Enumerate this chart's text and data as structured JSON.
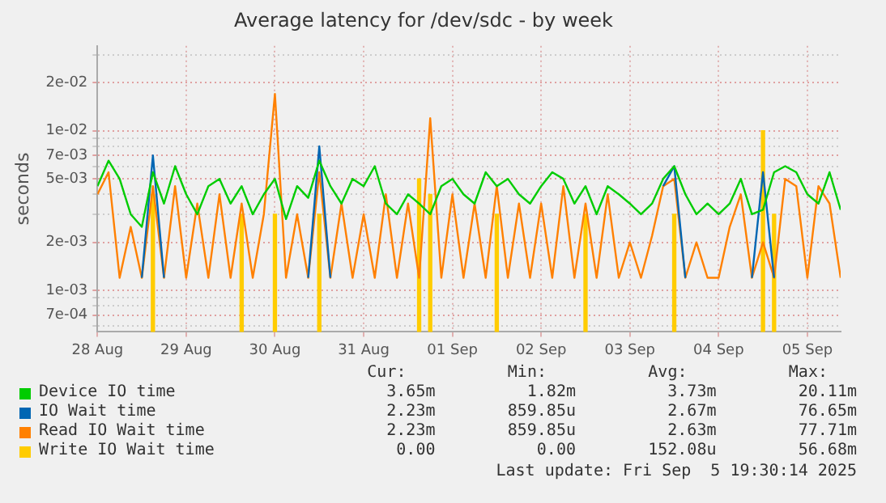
{
  "chart_data": {
    "type": "line",
    "title": "Average latency for /dev/sdc - by week",
    "ylabel": "seconds",
    "log": "y",
    "grid": true,
    "legend": "bottom",
    "marker": "none",
    "line_style": "solid",
    "x": [
      "2025-08-28T00:00",
      "2025-08-28T03:00",
      "2025-08-28T06:00",
      "2025-08-28T09:00",
      "2025-08-28T12:00",
      "2025-08-28T15:00",
      "2025-08-28T18:00",
      "2025-08-28T21:00",
      "2025-08-29T00:00",
      "2025-08-29T03:00",
      "2025-08-29T06:00",
      "2025-08-29T09:00",
      "2025-08-29T12:00",
      "2025-08-29T15:00",
      "2025-08-29T18:00",
      "2025-08-29T21:00",
      "2025-08-30T00:00",
      "2025-08-30T03:00",
      "2025-08-30T06:00",
      "2025-08-30T09:00",
      "2025-08-30T12:00",
      "2025-08-30T15:00",
      "2025-08-30T18:00",
      "2025-08-30T21:00",
      "2025-08-31T00:00",
      "2025-08-31T03:00",
      "2025-08-31T06:00",
      "2025-08-31T09:00",
      "2025-08-31T12:00",
      "2025-08-31T15:00",
      "2025-08-31T18:00",
      "2025-08-31T21:00",
      "2025-09-01T00:00",
      "2025-09-01T03:00",
      "2025-09-01T06:00",
      "2025-09-01T09:00",
      "2025-09-01T12:00",
      "2025-09-01T15:00",
      "2025-09-01T18:00",
      "2025-09-01T21:00",
      "2025-09-02T00:00",
      "2025-09-02T03:00",
      "2025-09-02T06:00",
      "2025-09-02T09:00",
      "2025-09-02T12:00",
      "2025-09-02T15:00",
      "2025-09-02T18:00",
      "2025-09-02T21:00",
      "2025-09-03T00:00",
      "2025-09-03T03:00",
      "2025-09-03T06:00",
      "2025-09-03T09:00",
      "2025-09-03T12:00",
      "2025-09-03T15:00",
      "2025-09-03T18:00",
      "2025-09-03T21:00",
      "2025-09-04T00:00",
      "2025-09-04T03:00",
      "2025-09-04T06:00",
      "2025-09-04T09:00",
      "2025-09-04T12:00",
      "2025-09-04T15:00",
      "2025-09-04T18:00",
      "2025-09-04T21:00",
      "2025-09-05T00:00",
      "2025-09-05T03:00",
      "2025-09-05T06:00",
      "2025-09-05T09:00"
    ],
    "xlim": [
      "2025-08-28T00:00",
      "2025-09-05T09:00"
    ],
    "xticks": [
      {
        "value": "2025-08-28",
        "label": "28 Aug"
      },
      {
        "value": "2025-08-29",
        "label": "29 Aug"
      },
      {
        "value": "2025-08-30",
        "label": "30 Aug"
      },
      {
        "value": "2025-08-31",
        "label": "31 Aug"
      },
      {
        "value": "2025-09-01",
        "label": "01 Sep"
      },
      {
        "value": "2025-09-02",
        "label": "02 Sep"
      },
      {
        "value": "2025-09-03",
        "label": "03 Sep"
      },
      {
        "value": "2025-09-04",
        "label": "04 Sep"
      },
      {
        "value": "2025-09-05",
        "label": "05 Sep"
      }
    ],
    "ylim": [
      0.00055,
      0.034
    ],
    "yticks": [
      {
        "value": 0.0006,
        "label": null
      },
      {
        "value": 0.0007,
        "label": "7e-04"
      },
      {
        "value": 0.0008,
        "label": null
      },
      {
        "value": 0.0009,
        "label": null
      },
      {
        "value": 0.001,
        "label": "1e-03"
      },
      {
        "value": 0.002,
        "label": "2e-03"
      },
      {
        "value": 0.003,
        "label": null
      },
      {
        "value": 0.004,
        "label": null
      },
      {
        "value": 0.005,
        "label": "5e-03"
      },
      {
        "value": 0.006,
        "label": null
      },
      {
        "value": 0.007,
        "label": "7e-03"
      },
      {
        "value": 0.008,
        "label": null
      },
      {
        "value": 0.009,
        "label": null
      },
      {
        "value": 0.01,
        "label": "1e-02"
      },
      {
        "value": 0.02,
        "label": "2e-02"
      },
      {
        "value": 0.03,
        "label": null
      }
    ],
    "series": [
      {
        "name": "Device IO time",
        "color": "#00cc00",
        "values": [
          0.0045,
          0.0065,
          0.005,
          0.003,
          0.0025,
          0.0055,
          0.0035,
          0.006,
          0.004,
          0.003,
          0.0045,
          0.005,
          0.0035,
          0.0045,
          0.003,
          0.004,
          0.005,
          0.0028,
          0.0045,
          0.0038,
          0.0065,
          0.0045,
          0.0035,
          0.005,
          0.0045,
          0.006,
          0.0035,
          0.003,
          0.004,
          0.0035,
          0.003,
          0.0045,
          0.005,
          0.004,
          0.0035,
          0.0055,
          0.0045,
          0.005,
          0.004,
          0.0035,
          0.0045,
          0.0055,
          0.005,
          0.0035,
          0.0045,
          0.003,
          0.0045,
          0.004,
          0.0035,
          0.003,
          0.0035,
          0.005,
          0.006,
          0.004,
          0.003,
          0.0035,
          0.003,
          0.0035,
          0.005,
          0.003,
          0.0032,
          0.0055,
          0.006,
          0.0055,
          0.004,
          0.0035,
          0.0055,
          0.0032
        ]
      },
      {
        "name": "IO Wait time",
        "color": "#0066b3",
        "values": [
          null,
          null,
          null,
          null,
          0.0012,
          0.007,
          0.0012,
          null,
          null,
          null,
          null,
          null,
          null,
          null,
          null,
          null,
          null,
          null,
          null,
          0.0012,
          0.008,
          0.0012,
          null,
          null,
          null,
          null,
          null,
          null,
          null,
          null,
          null,
          null,
          null,
          null,
          null,
          null,
          null,
          null,
          null,
          null,
          null,
          null,
          null,
          null,
          null,
          null,
          null,
          null,
          null,
          null,
          null,
          0.0045,
          0.006,
          0.0012,
          null,
          null,
          null,
          null,
          null,
          0.0012,
          0.0055,
          0.0012,
          null,
          null,
          null,
          null,
          null,
          null
        ]
      },
      {
        "name": "Read IO Wait time",
        "color": "#ff8000",
        "values": [
          0.004,
          0.0055,
          0.0012,
          0.0025,
          0.0012,
          0.0045,
          0.0012,
          0.0045,
          0.0012,
          0.0035,
          0.0012,
          0.004,
          0.0012,
          0.0035,
          0.0012,
          0.003,
          0.017,
          0.0012,
          0.003,
          0.0012,
          0.0055,
          0.0012,
          0.0035,
          0.0012,
          0.003,
          0.0012,
          0.004,
          0.0012,
          0.0035,
          0.0012,
          0.012,
          0.0012,
          0.004,
          0.0012,
          0.0035,
          0.0012,
          0.0045,
          0.0012,
          0.0035,
          0.0012,
          0.0035,
          0.0012,
          0.0045,
          0.0012,
          0.0035,
          0.0012,
          0.004,
          0.0012,
          0.002,
          0.0012,
          0.0022,
          0.0045,
          0.005,
          0.0012,
          0.002,
          0.0012,
          0.0012,
          0.0025,
          0.004,
          0.0012,
          0.002,
          0.0012,
          0.005,
          0.0045,
          0.0012,
          0.0045,
          0.0035,
          0.0012
        ]
      },
      {
        "name": "Write IO Wait time",
        "color": "#ffcc00",
        "type": "bar",
        "values": [
          null,
          null,
          null,
          null,
          null,
          0.004,
          null,
          null,
          null,
          null,
          null,
          null,
          null,
          0.003,
          null,
          null,
          0.003,
          null,
          null,
          null,
          0.003,
          null,
          null,
          null,
          null,
          null,
          null,
          null,
          null,
          0.005,
          0.004,
          null,
          null,
          null,
          null,
          null,
          0.003,
          null,
          null,
          null,
          null,
          null,
          null,
          null,
          0.003,
          null,
          null,
          null,
          null,
          null,
          null,
          null,
          0.003,
          null,
          null,
          null,
          null,
          null,
          null,
          null,
          0.01,
          0.003,
          null,
          null,
          null,
          null,
          null,
          null
        ]
      }
    ],
    "annotations": [
      "Cur:",
      "Min:",
      "Avg:",
      "Max:",
      "3.65m",
      "1.82m",
      "3.73m",
      "20.11m",
      "2.23m",
      "859.85u",
      "2.67m",
      "76.65m",
      "2.23m",
      "859.85u",
      "2.63m",
      "77.71m",
      "0.00",
      "0.00",
      "152.08u",
      "56.68m",
      "Last update: Fri Sep  5 19:30:14 2025"
    ]
  }
}
